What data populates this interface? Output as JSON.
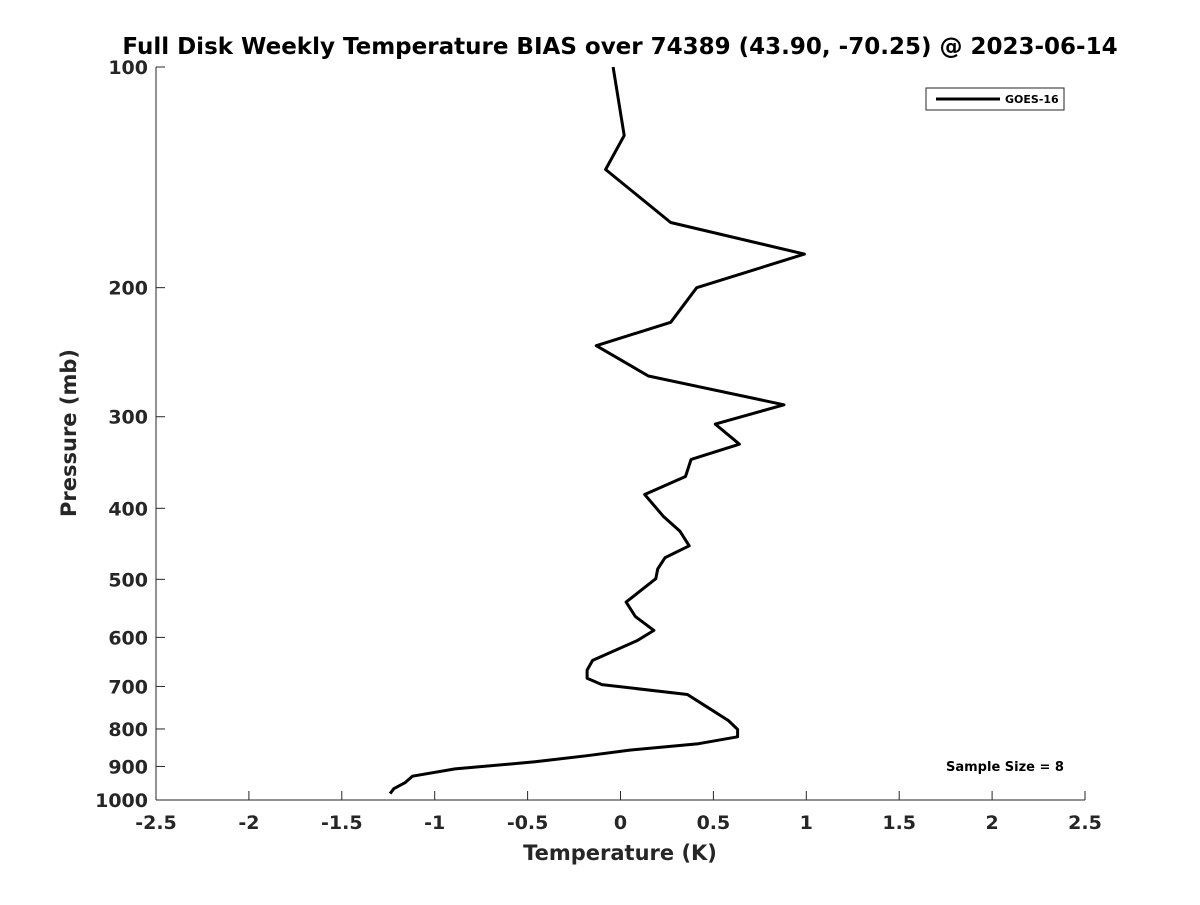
{
  "chart_data": {
    "type": "line",
    "title": "Full Disk Weekly Temperature BIAS over 74389 (43.90, -70.25) @ 2023-06-14",
    "xlabel": "Temperature (K)",
    "ylabel": "Pressure (mb)",
    "xlim": [
      -2.5,
      2.5
    ],
    "ylim": [
      100,
      1000
    ],
    "y_scale": "log",
    "y_reversed": true,
    "x_ticks": [
      "-2.5",
      "-2",
      "-1.5",
      "-1",
      "-0.5",
      "0",
      "0.5",
      "1",
      "1.5",
      "2",
      "2.5"
    ],
    "y_ticks": [
      "100",
      "200",
      "300",
      "400",
      "500",
      "600",
      "700",
      "800",
      "900",
      "1000"
    ],
    "grid": false,
    "legend": {
      "placement": "top-right"
    },
    "annotation": "Sample Size = 8",
    "colors": {
      "line": "#000000",
      "axis": "#262626"
    },
    "series": [
      {
        "name": "GOES-16",
        "x": [
          -0.04,
          0.02,
          -0.08,
          0.27,
          0.99,
          0.41,
          0.27,
          -0.13,
          0.15,
          0.88,
          0.51,
          0.64,
          0.38,
          0.35,
          0.13,
          0.23,
          0.32,
          0.37,
          0.24,
          0.2,
          0.19,
          0.03,
          0.08,
          0.18,
          0.09,
          -0.15,
          -0.18,
          -0.18,
          -0.1,
          0.36,
          0.46,
          0.58,
          0.63,
          0.63,
          0.42,
          0.05,
          -0.18,
          -0.46,
          -0.89,
          -1.12,
          -1.16,
          -1.22,
          -1.24
        ],
        "y": [
          100,
          124,
          138,
          163,
          180,
          200,
          223,
          240,
          264,
          289,
          307,
          327,
          343,
          362,
          383,
          410,
          430,
          450,
          467,
          484,
          499,
          537,
          562,
          587,
          606,
          645,
          665,
          682,
          696,
          718,
          745,
          779,
          801,
          820,
          838,
          855,
          870,
          887,
          907,
          928,
          947,
          965,
          980
        ]
      }
    ]
  }
}
